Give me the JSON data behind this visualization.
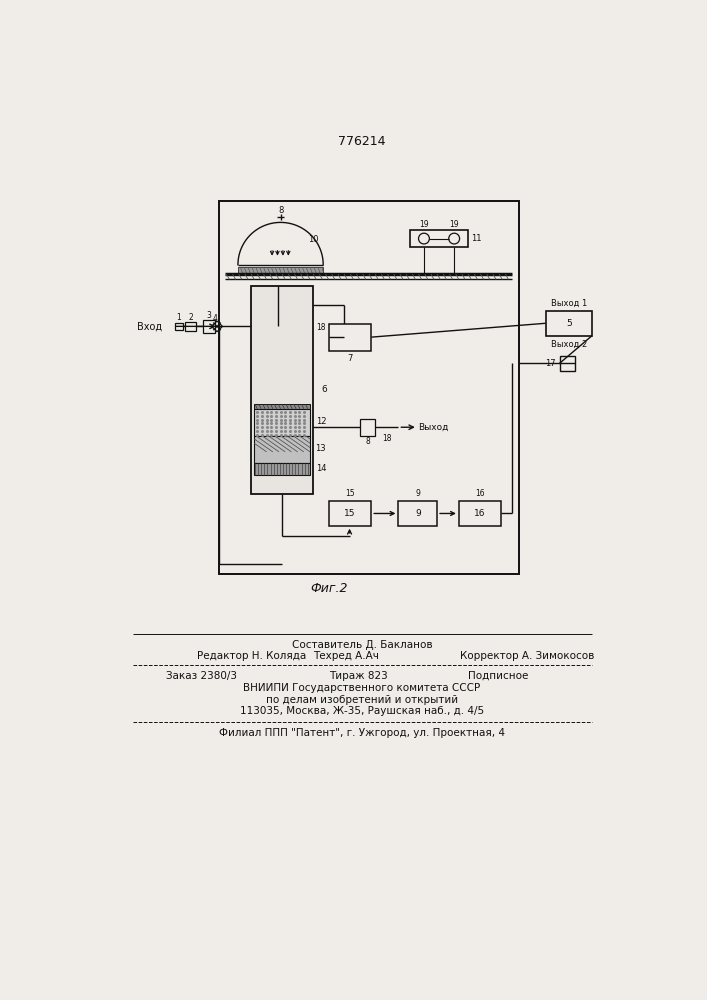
{
  "title": "776214",
  "fig_label": "Фиг.2",
  "bg_color": "#f0ede8",
  "line_color": "#111111",
  "text_vhod": "Вход",
  "text_vyhod1": "Выход 1",
  "text_vyhod2": "Выход 2",
  "text_vyhod": "Выход",
  "footer_line1": "Составитель Д. Бакланов",
  "footer_line2_left": "Редактор Н. Коляда",
  "footer_line2_mid": "Техред А.Ач",
  "footer_line2_right": "Корректор А. Зимокосов",
  "footer_line3_left": "Заказ 2380/3",
  "footer_line3_mid": "Тираж 823",
  "footer_line3_right": "Подписное",
  "footer_line4": "ВНИИПИ Государственного комитета СССР",
  "footer_line5": "по делам изобретений и открытий",
  "footer_line6": "113035, Москва, Ж-35, Раушская наб., д. 4/5",
  "footer_line7": "Филиал ППП \"Патент\", г. Ужгород, ул. Проектная, 4"
}
